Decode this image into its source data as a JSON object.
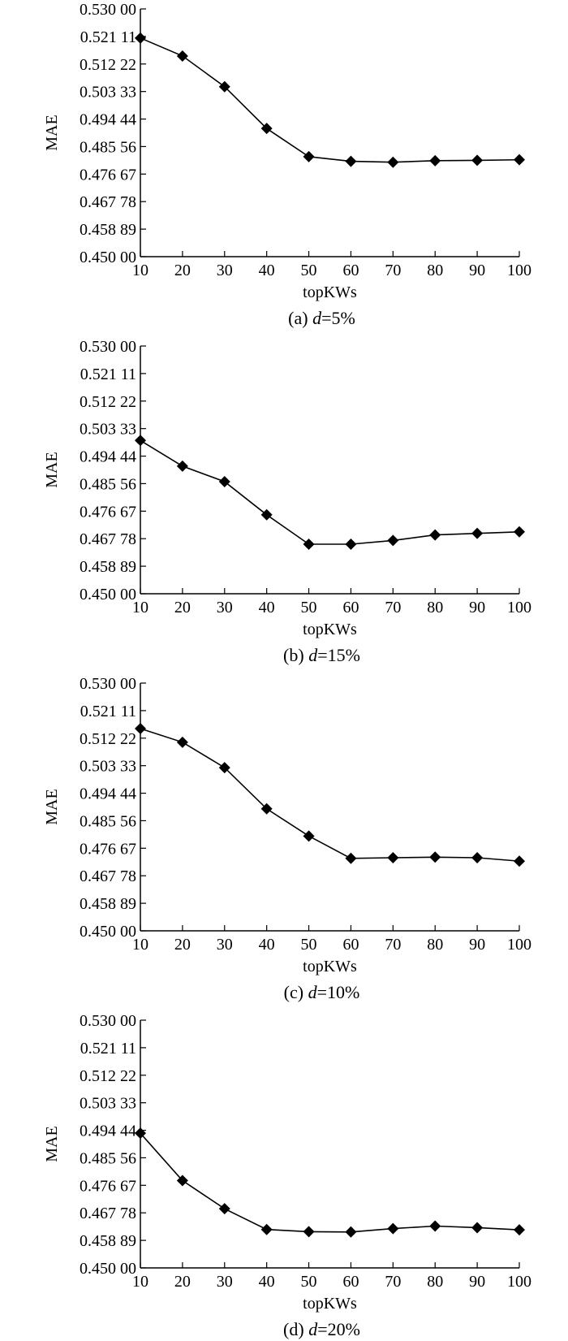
{
  "chart_data": [
    {
      "type": "line",
      "caption_prefix": "(a) ",
      "caption_var": "d",
      "caption_suffix": "=5%",
      "xlabel": "topKWs",
      "ylabel": "MAE",
      "x": [
        10,
        20,
        30,
        40,
        50,
        60,
        70,
        80,
        90,
        100
      ],
      "x_tick_labels": [
        "10",
        "20",
        "30",
        "40",
        "50",
        "60",
        "70",
        "80",
        "90",
        "100"
      ],
      "y_tick_values": [
        0.45,
        0.45889,
        0.46778,
        0.47667,
        0.48556,
        0.49444,
        0.50333,
        0.51222,
        0.52111,
        0.53
      ],
      "y_tick_labels": [
        "0.450 00",
        "0.458 89",
        "0.467 78",
        "0.476 67",
        "0.485 56",
        "0.494 44",
        "0.503 33",
        "0.512 22",
        "0.521 11",
        "0.530 00"
      ],
      "ylim": [
        0.45,
        0.53
      ],
      "xlim": [
        10,
        100
      ],
      "marker": "diamond",
      "series": [
        {
          "values": [
            0.5206,
            0.5148,
            0.5049,
            0.4914,
            0.4823,
            0.4808,
            0.4805,
            0.481,
            0.4811,
            0.4813
          ]
        }
      ]
    },
    {
      "type": "line",
      "caption_prefix": "(b) ",
      "caption_var": "d",
      "caption_suffix": "=15%",
      "xlabel": "topKWs",
      "ylabel": "MAE",
      "x": [
        10,
        20,
        30,
        40,
        50,
        60,
        70,
        80,
        90,
        100
      ],
      "x_tick_labels": [
        "10",
        "20",
        "30",
        "40",
        "50",
        "60",
        "70",
        "80",
        "90",
        "100"
      ],
      "y_tick_values": [
        0.45,
        0.45889,
        0.46778,
        0.47667,
        0.48556,
        0.49444,
        0.50333,
        0.51222,
        0.52111,
        0.53
      ],
      "y_tick_labels": [
        "0.450 00",
        "0.458 89",
        "0.467 78",
        "0.476 67",
        "0.485 56",
        "0.494 44",
        "0.503 33",
        "0.512 22",
        "0.521 11",
        "0.530 00"
      ],
      "ylim": [
        0.45,
        0.53
      ],
      "xlim": [
        10,
        100
      ],
      "marker": "diamond",
      "series": [
        {
          "values": [
            0.4995,
            0.4912,
            0.4862,
            0.4755,
            0.466,
            0.466,
            0.4672,
            0.469,
            0.4695,
            0.47
          ]
        }
      ]
    },
    {
      "type": "line",
      "caption_prefix": "(c) ",
      "caption_var": "d",
      "caption_suffix": "=10%",
      "xlabel": "topKWs",
      "ylabel": "MAE",
      "x": [
        10,
        20,
        30,
        40,
        50,
        60,
        70,
        80,
        90,
        100
      ],
      "x_tick_labels": [
        "10",
        "20",
        "30",
        "40",
        "50",
        "60",
        "70",
        "80",
        "90",
        "100"
      ],
      "y_tick_values": [
        0.45,
        0.45889,
        0.46778,
        0.47667,
        0.48556,
        0.49444,
        0.50333,
        0.51222,
        0.52111,
        0.53
      ],
      "y_tick_labels": [
        "0.450 00",
        "0.458 89",
        "0.467 78",
        "0.476 67",
        "0.485 56",
        "0.494 44",
        "0.503 33",
        "0.512 22",
        "0.521 11",
        "0.530 00"
      ],
      "ylim": [
        0.45,
        0.53
      ],
      "xlim": [
        10,
        100
      ],
      "marker": "diamond",
      "series": [
        {
          "values": [
            0.5153,
            0.5109,
            0.5027,
            0.4894,
            0.4806,
            0.4734,
            0.4736,
            0.4738,
            0.4736,
            0.4725
          ]
        }
      ]
    },
    {
      "type": "line",
      "caption_prefix": "(d) ",
      "caption_var": "d",
      "caption_suffix": "=20%",
      "xlabel": "topKWs",
      "ylabel": "MAE",
      "x": [
        10,
        20,
        30,
        40,
        50,
        60,
        70,
        80,
        90,
        100
      ],
      "x_tick_labels": [
        "10",
        "20",
        "30",
        "40",
        "50",
        "60",
        "70",
        "80",
        "90",
        "100"
      ],
      "y_tick_values": [
        0.45,
        0.45889,
        0.46778,
        0.47667,
        0.48556,
        0.49444,
        0.50333,
        0.51222,
        0.52111,
        0.53
      ],
      "y_tick_labels": [
        "0.450 00",
        "0.458 89",
        "0.467 78",
        "0.476 67",
        "0.485 56",
        "0.494 44",
        "0.503 33",
        "0.512 22",
        "0.521 11",
        "0.530 00"
      ],
      "ylim": [
        0.45,
        0.53
      ],
      "xlim": [
        10,
        100
      ],
      "marker": "diamond",
      "series": [
        {
          "values": [
            0.4935,
            0.4782,
            0.4691,
            0.4624,
            0.4617,
            0.4616,
            0.4627,
            0.4635,
            0.463,
            0.4623
          ]
        }
      ]
    }
  ]
}
